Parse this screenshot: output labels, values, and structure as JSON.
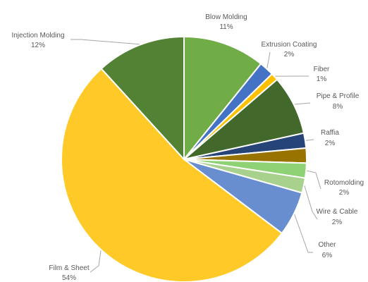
{
  "chart_data": {
    "type": "pie",
    "title": "",
    "legend": "none",
    "slices": [
      {
        "name": "Blow Molding",
        "value": 11,
        "label": "11%",
        "color": "#70ad47"
      },
      {
        "name": "Extrusion Coating",
        "value": 2,
        "label": "2%",
        "color": "#4472c4"
      },
      {
        "name": "Fiber",
        "value": 1,
        "label": "1%",
        "color": "#ffc000"
      },
      {
        "name": "Pipe & Profile",
        "value": 8,
        "label": "8%",
        "color": "#43682b"
      },
      {
        "name": "Raffia",
        "value": 2,
        "label": "2%",
        "color": "#264478"
      },
      {
        "name": "",
        "value": 2,
        "label": "",
        "color": "#997300"
      },
      {
        "name": "Rotomolding",
        "value": 2,
        "label": "2%",
        "color": "#8fd175"
      },
      {
        "name": "Wire & Cable",
        "value": 2,
        "label": "2%",
        "color": "#a9d18e"
      },
      {
        "name": "Other",
        "value": 6,
        "label": "6%",
        "color": "#698ed0"
      },
      {
        "name": "Film & Sheet",
        "value": 54,
        "label": "54%",
        "color": "#ffca28"
      },
      {
        "name": "Injection Molding",
        "value": 12,
        "label": "12%",
        "color": "#548235"
      }
    ]
  }
}
